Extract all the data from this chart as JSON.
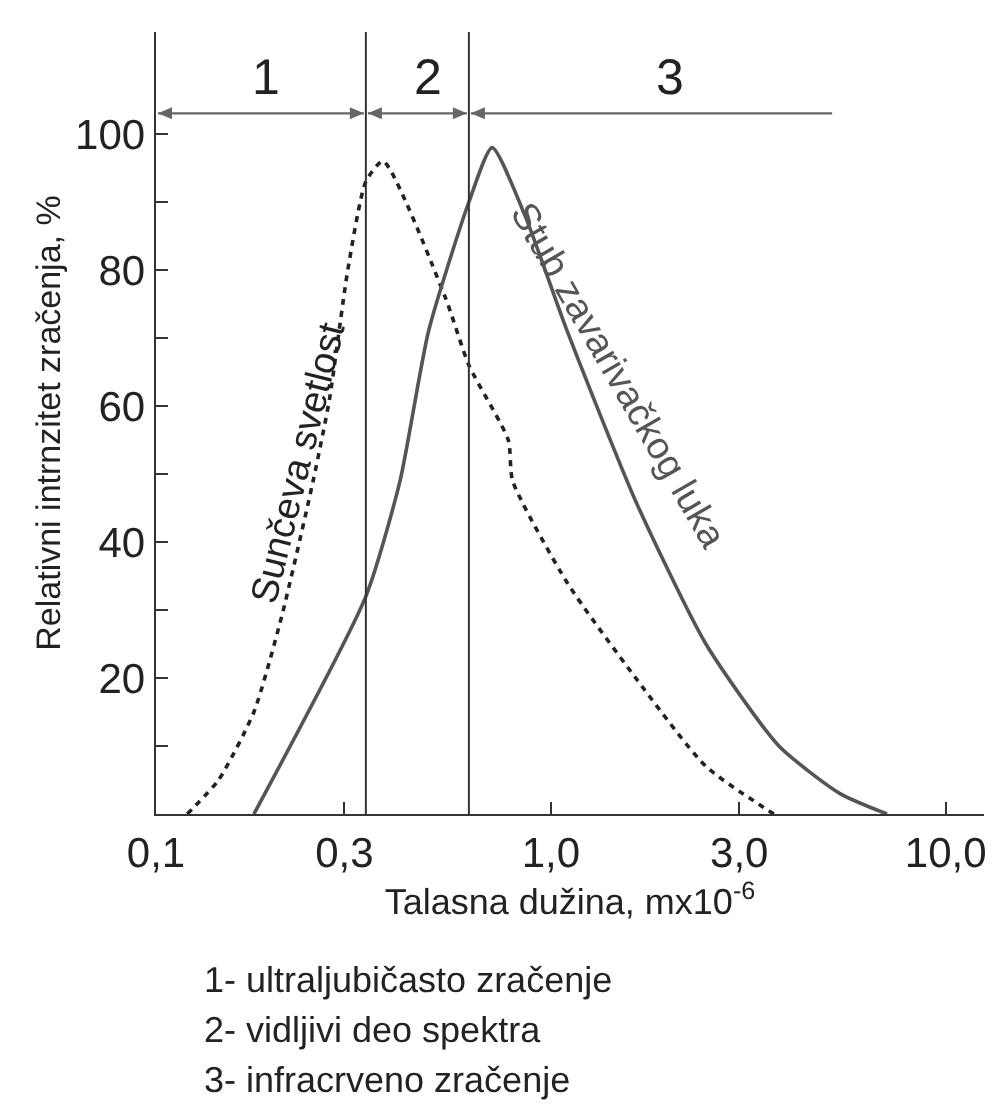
{
  "chart_data": {
    "type": "line",
    "xlabel": "Talasna dužina, mx10$^{-6}$",
    "ylabel": "Relativni intrnzitet zračenja, %",
    "log": "x",
    "xlim": [
      0.1,
      12.5
    ],
    "xticks": [
      {
        "value": 0.1,
        "label": "0,1"
      },
      {
        "value": 0.3,
        "label": "0,3"
      },
      {
        "value": 1,
        "label": "1,0"
      },
      {
        "value": 3,
        "label": "3,0"
      },
      {
        "value": 10,
        "label": "10,0"
      }
    ],
    "ylim": [
      0,
      115
    ],
    "yticks": [
      {
        "value": 10,
        "label": null
      },
      20,
      {
        "value": 30,
        "label": null
      },
      40,
      {
        "value": 50,
        "label": null
      },
      60,
      {
        "value": 70,
        "label": null
      },
      80,
      {
        "value": 90,
        "label": null
      },
      100
    ],
    "grid": false,
    "legend": false,
    "marker": "none",
    "series": [
      {
        "name": "Sunčeva svetlost",
        "color": "#222222",
        "line_style": "dotted",
        "x": [
          0.12,
          0.144,
          0.177,
          0.208,
          0.25,
          0.275,
          0.306,
          0.34,
          0.376,
          0.54,
          0.62,
          0.78,
          0.8,
          1.1,
          1.64,
          2.47,
          3.67
        ],
        "values": [
          0,
          5,
          15,
          29,
          49,
          61,
          80,
          93,
          96,
          76,
          66,
          55,
          49,
          34,
          20,
          7,
          0
        ]
      },
      {
        "name": "Stub zavarivačkog luka",
        "color": "#555555",
        "line_style": "solid",
        "x": [
          0.177,
          0.34,
          0.415,
          0.49,
          0.62,
          0.71,
          0.86,
          1.1,
          1.64,
          2.47,
          3.78,
          5.4,
          7.1
        ],
        "values": [
          0,
          32,
          49,
          71,
          90,
          98,
          88,
          71,
          46,
          25,
          10,
          3,
          0
        ]
      }
    ],
    "ref_lines": [
      {
        "axis": "x",
        "value": 0.34,
        "color": "#333333"
      },
      {
        "axis": "x",
        "value": 0.62,
        "color": "#333333"
      }
    ],
    "annotations": [
      "1",
      "2",
      "3",
      "1- ultraljubičasto zračenje",
      "2- vidljivi deo spektra",
      "3- infracrveno zračenje"
    ]
  }
}
